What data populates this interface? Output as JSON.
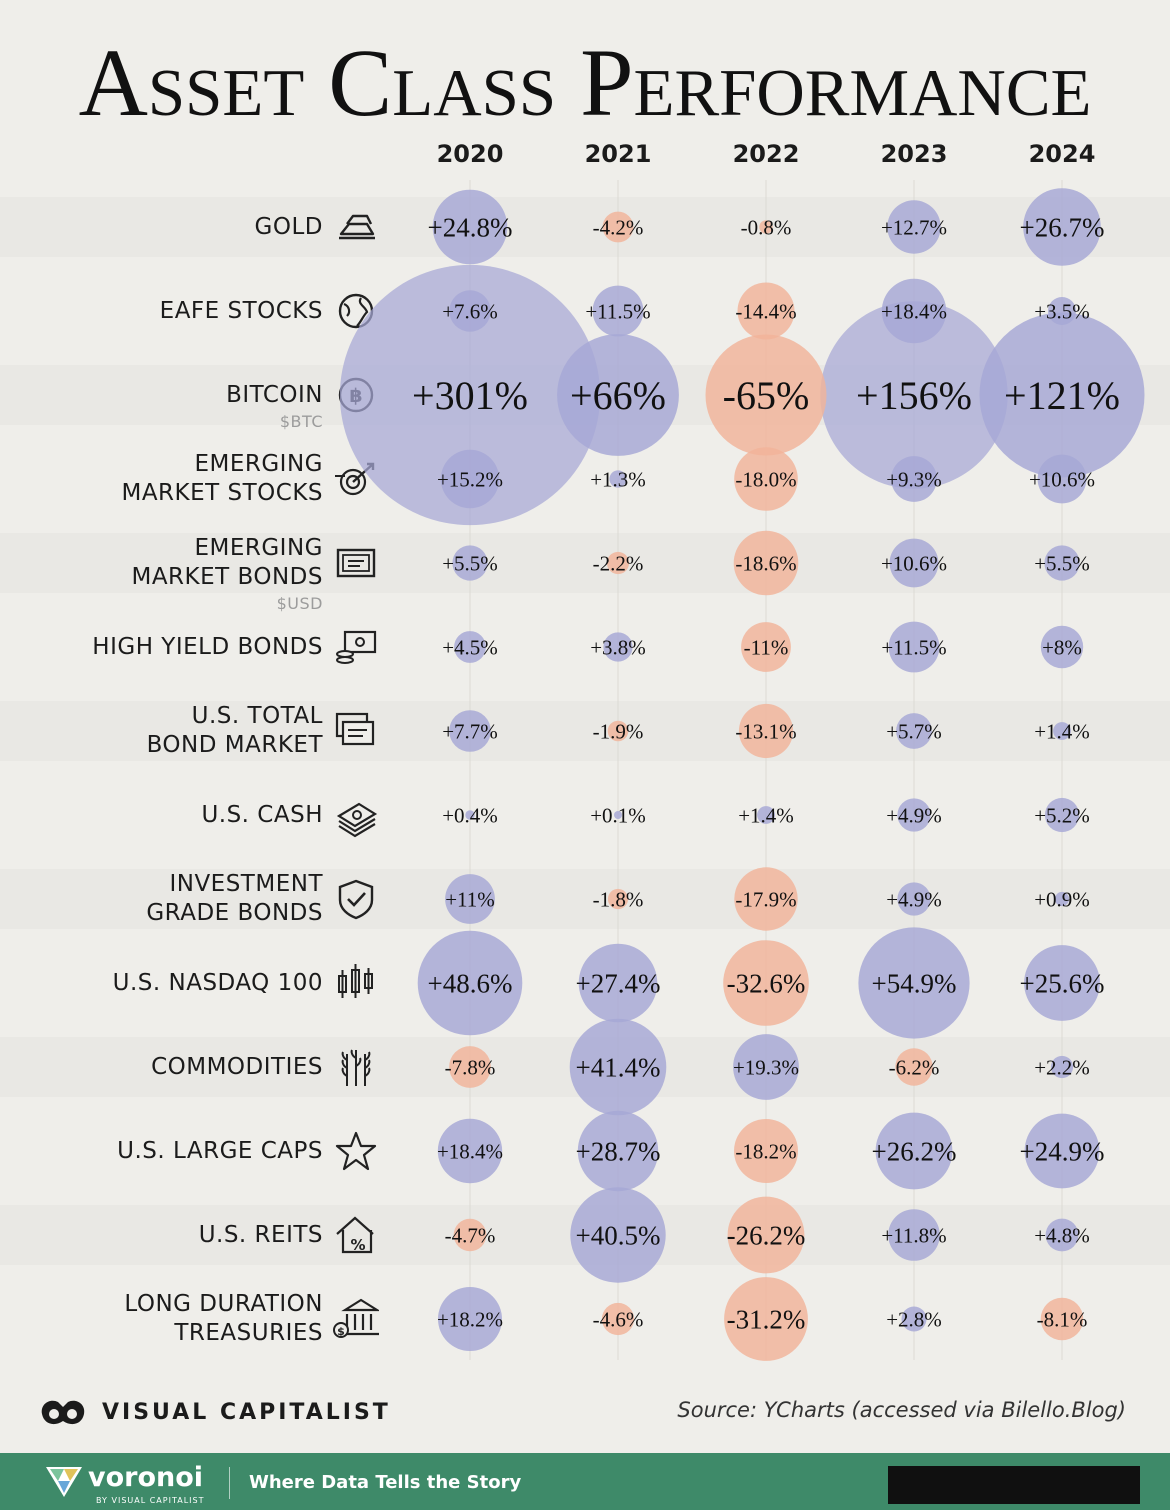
{
  "title": "Asset Class Performance",
  "years": [
    "2020",
    "2021",
    "2022",
    "2023",
    "2024"
  ],
  "chart_data": {
    "type": "bubble-table",
    "categories": [
      "2020",
      "2021",
      "2022",
      "2023",
      "2024"
    ],
    "colors": {
      "positive": "#a6a7d6",
      "negative": "#f2b39a",
      "text": "#111111"
    },
    "series": [
      {
        "name": "GOLD",
        "sub": "",
        "icon": "gold-bars-icon",
        "values": [
          24.8,
          -4.2,
          -0.8,
          12.7,
          26.7
        ],
        "labels": [
          "+24.8%",
          "-4.2%",
          "-0.8%",
          "+12.7%",
          "+26.7%"
        ]
      },
      {
        "name": "EAFE STOCKS",
        "sub": "",
        "icon": "globe-icon",
        "values": [
          7.6,
          11.5,
          -14.4,
          18.4,
          3.5
        ],
        "labels": [
          "+7.6%",
          "+11.5%",
          "-14.4%",
          "+18.4%",
          "+3.5%"
        ]
      },
      {
        "name": "BITCOIN",
        "sub": "$BTC",
        "icon": "bitcoin-icon",
        "values": [
          301,
          66,
          -65,
          156,
          121
        ],
        "labels": [
          "+301%",
          "+66%",
          "-65%",
          "+156%",
          "+121%"
        ]
      },
      {
        "name": "EMERGING MARKET STOCKS",
        "sub": "",
        "icon": "target-arrow-icon",
        "values": [
          15.2,
          1.3,
          -18.0,
          9.3,
          10.6
        ],
        "labels": [
          "+15.2%",
          "+1.3%",
          "-18.0%",
          "+9.3%",
          "+10.6%"
        ]
      },
      {
        "name": "EMERGING MARKET BONDS",
        "sub": "$USD",
        "icon": "bond-certificate-icon",
        "values": [
          5.5,
          -2.2,
          -18.6,
          10.6,
          5.5
        ],
        "labels": [
          "+5.5%",
          "-2.2%",
          "-18.6%",
          "+10.6%",
          "+5.5%"
        ]
      },
      {
        "name": "HIGH YIELD BONDS",
        "sub": "",
        "icon": "coins-bill-icon",
        "values": [
          4.5,
          3.8,
          -11,
          11.5,
          8
        ],
        "labels": [
          "+4.5%",
          "+3.8%",
          "-11%",
          "+11.5%",
          "+8%"
        ]
      },
      {
        "name": "U.S. TOTAL BOND MARKET",
        "sub": "",
        "icon": "bond-stack-icon",
        "values": [
          7.7,
          -1.9,
          -13.1,
          5.7,
          1.4
        ],
        "labels": [
          "+7.7%",
          "-1.9%",
          "-13.1%",
          "+5.7%",
          "+1.4%"
        ]
      },
      {
        "name": "U.S. CASH",
        "sub": "",
        "icon": "cash-stack-icon",
        "values": [
          0.4,
          0.1,
          1.4,
          4.9,
          5.2
        ],
        "labels": [
          "+0.4%",
          "+0.1%",
          "+1.4%",
          "+4.9%",
          "+5.2%"
        ]
      },
      {
        "name": "INVESTMENT GRADE BONDS",
        "sub": "",
        "icon": "shield-check-icon",
        "values": [
          11,
          -1.8,
          -17.9,
          4.9,
          0.9
        ],
        "labels": [
          "+11%",
          "-1.8%",
          "-17.9%",
          "+4.9%",
          "+0.9%"
        ]
      },
      {
        "name": "U.S. NASDAQ 100",
        "sub": "",
        "icon": "candlestick-icon",
        "values": [
          48.6,
          27.4,
          -32.6,
          54.9,
          25.6
        ],
        "labels": [
          "+48.6%",
          "+27.4%",
          "-32.6%",
          "+54.9%",
          "+25.6%"
        ]
      },
      {
        "name": "COMMODITIES",
        "sub": "",
        "icon": "wheat-icon",
        "values": [
          -7.8,
          41.4,
          19.3,
          -6.2,
          2.2
        ],
        "labels": [
          "-7.8%",
          "+41.4%",
          "+19.3%",
          "-6.2%",
          "+2.2%"
        ]
      },
      {
        "name": "U.S. LARGE CAPS",
        "sub": "",
        "icon": "star-icon",
        "values": [
          18.4,
          28.7,
          -18.2,
          26.2,
          24.9
        ],
        "labels": [
          "+18.4%",
          "+28.7%",
          "-18.2%",
          "+26.2%",
          "+24.9%"
        ]
      },
      {
        "name": "U.S. REITS",
        "sub": "",
        "icon": "house-percent-icon",
        "values": [
          -4.7,
          40.5,
          -26.2,
          11.8,
          4.8
        ],
        "labels": [
          "-4.7%",
          "+40.5%",
          "-26.2%",
          "+11.8%",
          "+4.8%"
        ]
      },
      {
        "name": "LONG DURATION TREASURIES",
        "sub": "",
        "icon": "bank-money-icon",
        "values": [
          18.2,
          -4.6,
          -31.2,
          2.8,
          -8.1
        ],
        "labels": [
          "+18.2%",
          "-4.6%",
          "-31.2%",
          "+2.8%",
          "-8.1%"
        ]
      }
    ]
  },
  "footer": {
    "brand": "VISUAL CAPITALIST",
    "source": "Source: YCharts (accessed via Bilello.Blog)",
    "voronoi": "voronoi",
    "voronoi_sub": "BY VISUAL CAPITALIST",
    "tagline": "Where Data Tells the Story"
  }
}
